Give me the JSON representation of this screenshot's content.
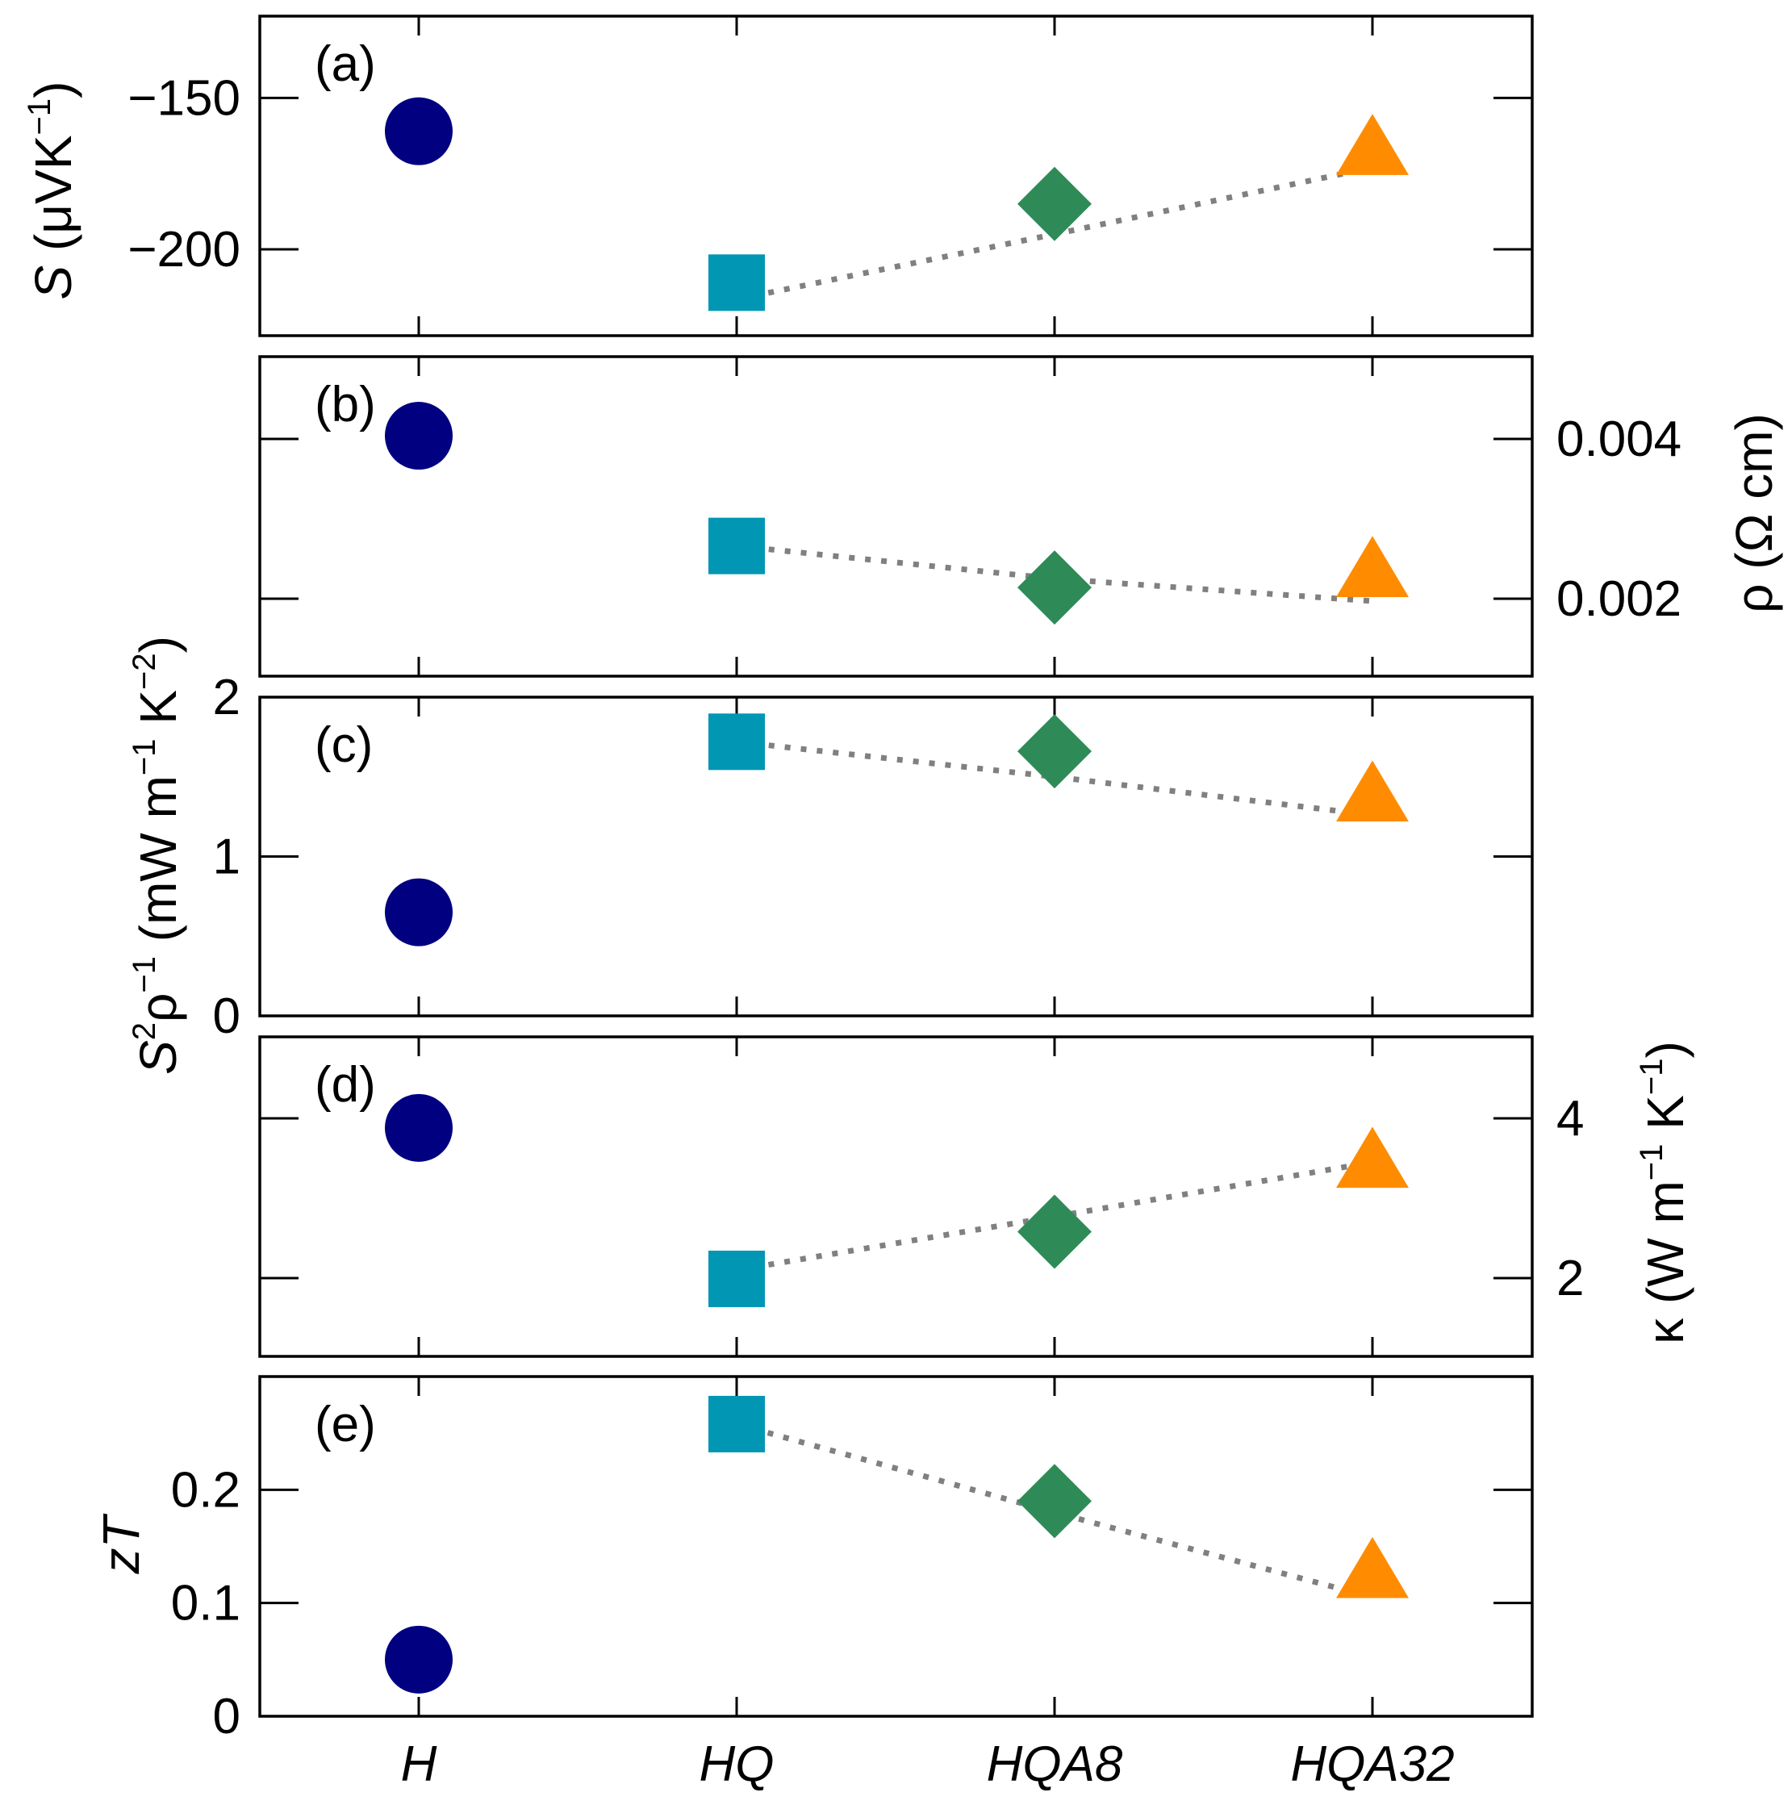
{
  "chart_data": {
    "type": "scatter",
    "categories": [
      "H",
      "HQ",
      "HQA8",
      "HQA32"
    ],
    "colors": {
      "H": "#000080",
      "HQ": "#0096b4",
      "HQA8": "#2e8b57",
      "HQA32": "#ff8c00"
    },
    "markers": {
      "H": "circle",
      "HQ": "square",
      "HQA8": "diamond",
      "HQA32": "triangle"
    },
    "connector": {
      "from_category": "HQ",
      "style": "dotted",
      "color": "#808080"
    },
    "panels": [
      {
        "label": "(a)",
        "axis_side": "left",
        "ylabel": "S (μVK⁻¹)",
        "ylabel_parts": {
          "sym": "S",
          "pre": " (μVK",
          "sup": "−1",
          "post": ")"
        },
        "ylim": [
          -228.5,
          -123
        ],
        "yticks": [
          -200,
          -150
        ],
        "ytick_labels": [
          "−200",
          "−150"
        ],
        "values": [
          -161,
          -211,
          -185,
          -167
        ],
        "line_values": [
          -216.5,
          -195,
          -173
        ]
      },
      {
        "label": "(b)",
        "axis_side": "right",
        "ylabel": "ρ (Ω cm)",
        "ylabel_parts": {
          "sym": "ρ",
          "pre": " (Ω cm)",
          "sup": "",
          "post": ""
        },
        "ylim": [
          0.00103,
          0.00503
        ],
        "yticks": [
          0.002,
          0.004
        ],
        "ytick_labels": [
          "0.002",
          "0.004"
        ],
        "values": [
          0.00404,
          0.00266,
          0.00214,
          0.00234
        ],
        "line_values": [
          0.00266,
          0.00225,
          0.00197
        ]
      },
      {
        "label": "(c)",
        "axis_side": "left",
        "ylabel": "S²ρ⁻¹ (mW m⁻¹ K⁻²)",
        "ylim": [
          0,
          2
        ],
        "yticks": [
          0,
          1,
          2
        ],
        "ytick_labels": [
          "0",
          "1",
          "2"
        ],
        "values": [
          0.65,
          1.72,
          1.66,
          1.38
        ],
        "line_values": [
          1.72,
          1.5,
          1.26
        ]
      },
      {
        "label": "(d)",
        "axis_side": "right",
        "ylabel": "κ (W m⁻¹ K⁻¹)",
        "ylim": [
          1.02,
          5.02
        ],
        "yticks": [
          2,
          4
        ],
        "ytick_labels": [
          "2",
          "4"
        ],
        "values": [
          3.88,
          1.99,
          2.58,
          3.45
        ],
        "line_values": [
          2.1,
          2.77,
          3.45
        ]
      },
      {
        "label": "(e)",
        "axis_side": "left",
        "ylabel": "zT",
        "ylabel_parts": {
          "sym": "zT",
          "pre": "",
          "sup": "",
          "post": ""
        },
        "ylim": [
          0,
          0.3
        ],
        "yticks": [
          0,
          0.1,
          0.2
        ],
        "ytick_labels": [
          "0",
          "0.1",
          "0.2"
        ],
        "values": [
          0.05,
          0.258,
          0.19,
          0.127
        ],
        "line_values": [
          0.258,
          0.18,
          0.105
        ]
      }
    ],
    "shared_ylabel": {
      "base": "S",
      "base_sup": "2",
      "rho": "ρ",
      "rho_sup": "−1",
      "unit_pre": " (mW m",
      "unit_sup1": "−1",
      "unit_mid": " K",
      "unit_sup2": "−2",
      "unit_post": ")"
    },
    "kappa_ylabel": {
      "base": "κ",
      "unit_pre": " (W m",
      "unit_sup1": "−1",
      "unit_mid": " K",
      "unit_sup2": "−1",
      "unit_post": ")"
    }
  }
}
